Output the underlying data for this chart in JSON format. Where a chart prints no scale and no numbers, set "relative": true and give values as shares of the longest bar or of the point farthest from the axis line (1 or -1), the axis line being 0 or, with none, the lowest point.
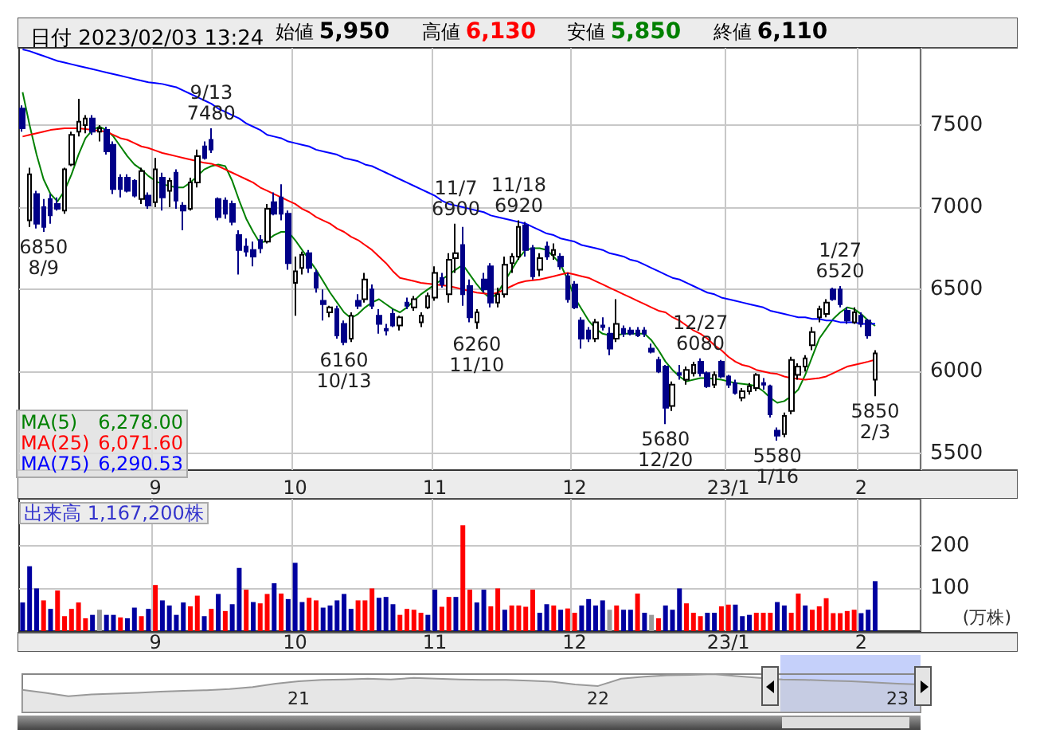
{
  "chart_data": [
    {
      "type": "candlestick",
      "title": "日付 2023/02/03 13:24",
      "annotations": [
        "始値 5,950",
        "高値 6,130",
        "安値 5,850",
        "終値 6,110",
        "6,278.00",
        "6,071.60",
        "6,290.53",
        {
          "text": "6850\n8/9",
          "y": 6850
        },
        {
          "text": "9/13\n7480",
          "y": 7480
        },
        {
          "text": "6160\n10/13",
          "y": 6160
        },
        {
          "text": "11/7\n6900",
          "y": 6900
        },
        {
          "text": "6260\n11/10",
          "y": 6260
        },
        {
          "text": "11/18\n6920",
          "y": 6920
        },
        {
          "text": "5680\n12/20",
          "y": 5680
        },
        {
          "text": "12/27\n6080",
          "y": 6080
        },
        {
          "text": "5580\n1/16",
          "y": 5580
        },
        {
          "text": "1/27\n6520",
          "y": 6520
        },
        {
          "text": "5850\n2/3",
          "y": 5850
        }
      ],
      "categories": [
        null,
        null,
        null,
        null,
        null,
        null,
        null,
        null,
        null,
        null,
        null,
        null,
        null,
        null,
        null,
        null,
        null,
        null,
        null,
        "9",
        null,
        null,
        null,
        null,
        null,
        null,
        null,
        null,
        null,
        null,
        null,
        null,
        null,
        null,
        null,
        null,
        null,
        null,
        null,
        "10",
        null,
        null,
        null,
        null,
        null,
        null,
        null,
        null,
        null,
        null,
        null,
        null,
        null,
        null,
        null,
        null,
        null,
        null,
        null,
        "11",
        null,
        null,
        null,
        null,
        null,
        null,
        null,
        null,
        null,
        null,
        null,
        null,
        null,
        null,
        null,
        null,
        null,
        null,
        null,
        "12",
        null,
        null,
        null,
        null,
        null,
        null,
        null,
        null,
        null,
        null,
        null,
        null,
        null,
        null,
        null,
        null,
        null,
        null,
        null,
        null,
        null,
        "23/1",
        null,
        null,
        null,
        null,
        null,
        null,
        null,
        null,
        null,
        null,
        null,
        null,
        null,
        null,
        null,
        null,
        null,
        null,
        "2",
        null,
        null
      ],
      "ohlc": [
        [
          7600,
          7620,
          7460,
          7480
        ],
        [
          6920,
          7240,
          6880,
          7200
        ],
        [
          7080,
          7100,
          6870,
          6900
        ],
        [
          7000,
          7050,
          6850,
          6880
        ],
        [
          7050,
          7080,
          6900,
          6950
        ],
        [
          7020,
          7060,
          6980,
          6990
        ],
        [
          6980,
          7240,
          6960,
          7230
        ],
        [
          7260,
          7460,
          7250,
          7440
        ],
        [
          7460,
          7660,
          7430,
          7520
        ],
        [
          7500,
          7560,
          7450,
          7540
        ],
        [
          7540,
          7560,
          7440,
          7460
        ],
        [
          7460,
          7500,
          7400,
          7480
        ],
        [
          7470,
          7490,
          7320,
          7340
        ],
        [
          7380,
          7400,
          7080,
          7110
        ],
        [
          7180,
          7200,
          7060,
          7110
        ],
        [
          7180,
          7200,
          7090,
          7100
        ],
        [
          7160,
          7170,
          7060,
          7070
        ],
        [
          7050,
          7240,
          7020,
          7220
        ],
        [
          7070,
          7090,
          6990,
          7010
        ],
        [
          7030,
          7300,
          7000,
          7230
        ],
        [
          7180,
          7210,
          6980,
          7060
        ],
        [
          7100,
          7180,
          7000,
          7160
        ],
        [
          7210,
          7230,
          6990,
          7040
        ],
        [
          7010,
          7030,
          6860,
          6980
        ],
        [
          6990,
          7180,
          6980,
          7150
        ],
        [
          7150,
          7350,
          7120,
          7310
        ],
        [
          7370,
          7400,
          7290,
          7300
        ],
        [
          7410,
          7480,
          7330,
          7350
        ],
        [
          7050,
          7060,
          6920,
          6940
        ],
        [
          7040,
          7060,
          6930,
          6960
        ],
        [
          7020,
          7040,
          6890,
          6910
        ],
        [
          6830,
          6860,
          6590,
          6740
        ],
        [
          6760,
          6810,
          6700,
          6730
        ],
        [
          6740,
          6790,
          6640,
          6700
        ],
        [
          6800,
          6830,
          6720,
          6750
        ],
        [
          6790,
          7020,
          6780,
          6990
        ],
        [
          7030,
          7090,
          6950,
          6960
        ],
        [
          7060,
          7140,
          6920,
          6960
        ],
        [
          6960,
          6980,
          6620,
          6660
        ],
        [
          6540,
          6700,
          6340,
          6610
        ],
        [
          6630,
          6730,
          6590,
          6710
        ],
        [
          6720,
          6740,
          6600,
          6630
        ],
        [
          6600,
          6620,
          6480,
          6510
        ],
        [
          6430,
          6500,
          6310,
          6410
        ],
        [
          6360,
          6400,
          6330,
          6390
        ],
        [
          6380,
          6400,
          6200,
          6220
        ],
        [
          6290,
          6310,
          6160,
          6180
        ],
        [
          6200,
          6360,
          6180,
          6340
        ],
        [
          6430,
          6470,
          6380,
          6400
        ],
        [
          6440,
          6600,
          6420,
          6560
        ],
        [
          6500,
          6530,
          6380,
          6400
        ],
        [
          6340,
          6380,
          6230,
          6290
        ],
        [
          6260,
          6290,
          6220,
          6250
        ],
        [
          6350,
          6380,
          6270,
          6280
        ],
        [
          6280,
          6340,
          6250,
          6330
        ],
        [
          6420,
          6450,
          6380,
          6400
        ],
        [
          6390,
          6460,
          6370,
          6440
        ],
        [
          6300,
          6360,
          6270,
          6340
        ],
        [
          6390,
          6480,
          6380,
          6460
        ],
        [
          6450,
          6640,
          6430,
          6600
        ],
        [
          6570,
          6600,
          6510,
          6530
        ],
        [
          6470,
          6720,
          6420,
          6680
        ],
        [
          6690,
          6900,
          6600,
          6720
        ],
        [
          6770,
          6880,
          6400,
          6470
        ],
        [
          6520,
          6560,
          6300,
          6330
        ],
        [
          6300,
          6380,
          6260,
          6360
        ],
        [
          6560,
          6600,
          6480,
          6500
        ],
        [
          6640,
          6660,
          6390,
          6420
        ],
        [
          6420,
          6510,
          6390,
          6470
        ],
        [
          6470,
          6700,
          6450,
          6650
        ],
        [
          6660,
          6720,
          6600,
          6700
        ],
        [
          6700,
          6920,
          6680,
          6880
        ],
        [
          6890,
          6910,
          6700,
          6740
        ],
        [
          6750,
          6770,
          6560,
          6580
        ],
        [
          6620,
          6720,
          6580,
          6690
        ],
        [
          6760,
          6790,
          6680,
          6700
        ],
        [
          6710,
          6780,
          6680,
          6740
        ],
        [
          6700,
          6720,
          6620,
          6640
        ],
        [
          6580,
          6600,
          6420,
          6440
        ],
        [
          6530,
          6550,
          6380,
          6390
        ],
        [
          6310,
          6330,
          6140,
          6200
        ],
        [
          6250,
          6270,
          6180,
          6200
        ],
        [
          6200,
          6320,
          6180,
          6300
        ],
        [
          6280,
          6330,
          6250,
          6270
        ],
        [
          6230,
          6270,
          6100,
          6140
        ],
        [
          6200,
          6440,
          6180,
          6290
        ],
        [
          6260,
          6280,
          6210,
          6230
        ],
        [
          6250,
          6270,
          6220,
          6230
        ],
        [
          6250,
          6270,
          6210,
          6220
        ],
        [
          6250,
          6270,
          6210,
          6230
        ],
        [
          6140,
          6170,
          6110,
          6120
        ],
        [
          6070,
          6090,
          5990,
          6000
        ],
        [
          6030,
          6040,
          5680,
          5780
        ],
        [
          5790,
          5940,
          5760,
          5920
        ],
        [
          5990,
          6040,
          5950,
          5980
        ],
        [
          5950,
          6030,
          5920,
          6010
        ],
        [
          5990,
          6060,
          5970,
          6040
        ],
        [
          6060,
          6080,
          5970,
          5990
        ],
        [
          5990,
          6000,
          5900,
          5910
        ],
        [
          5920,
          6000,
          5900,
          5980
        ],
        [
          6060,
          6070,
          5960,
          5970
        ],
        [
          5970,
          5980,
          5900,
          5920
        ],
        [
          5930,
          5950,
          5860,
          5870
        ],
        [
          5840,
          5900,
          5820,
          5880
        ],
        [
          5880,
          5930,
          5860,
          5910
        ],
        [
          5900,
          5990,
          5880,
          5980
        ],
        [
          5930,
          5960,
          5890,
          5920
        ],
        [
          5910,
          5920,
          5720,
          5740
        ],
        [
          5640,
          5660,
          5580,
          5610
        ],
        [
          5620,
          5750,
          5600,
          5730
        ],
        [
          5760,
          6090,
          5740,
          6070
        ],
        [
          5980,
          6050,
          5950,
          6030
        ],
        [
          6030,
          6100,
          6000,
          6080
        ],
        [
          6160,
          6270,
          6130,
          6240
        ],
        [
          6330,
          6400,
          6300,
          6380
        ],
        [
          6350,
          6440,
          6330,
          6420
        ],
        [
          6500,
          6510,
          6430,
          6440
        ],
        [
          6500,
          6520,
          6390,
          6410
        ],
        [
          6370,
          6390,
          6290,
          6310
        ],
        [
          6300,
          6390,
          6290,
          6360
        ],
        [
          6340,
          6360,
          6270,
          6290
        ],
        [
          6310,
          6320,
          6200,
          6220
        ],
        [
          5950,
          6130,
          5850,
          6110
        ]
      ],
      "series": [
        {
          "name": "MA(5)",
          "type": "line",
          "color": "#008000",
          "values": [
            7700,
            7500,
            7320,
            7170,
            7080,
            7035,
            7100,
            7200,
            7320,
            7420,
            7470,
            7490,
            7470,
            7430,
            7370,
            7310,
            7260,
            7230,
            7190,
            7160,
            7140,
            7130,
            7120,
            7120,
            7150,
            7190,
            7230,
            7250,
            7260,
            7250,
            7160,
            7040,
            6930,
            6850,
            6780,
            6800,
            6830,
            6850,
            6850,
            6800,
            6740,
            6680,
            6620,
            6550,
            6480,
            6420,
            6360,
            6325,
            6350,
            6390,
            6420,
            6440,
            6410,
            6380,
            6360,
            6390,
            6430,
            6470,
            6500,
            6530,
            6560,
            6590,
            6620,
            6650,
            6590,
            6530,
            6480,
            6440,
            6480,
            6550,
            6620,
            6690,
            6740,
            6750,
            6750,
            6740,
            6700,
            6650,
            6560,
            6450,
            6380,
            6310,
            6260,
            6230,
            6220,
            6220,
            6230,
            6230,
            6230,
            6230,
            6190,
            6130,
            6060,
            6010,
            5970,
            5940,
            5950,
            5960,
            5960,
            5955,
            5950,
            5940,
            5930,
            5925,
            5920,
            5910,
            5880,
            5840,
            5810,
            5820,
            5850,
            5890,
            5980,
            6090,
            6200,
            6260,
            6320,
            6360,
            6390,
            6380,
            6350,
            6310,
            6278
          ]
        },
        {
          "name": "MA(25)",
          "type": "line",
          "color": "#ff0000",
          "values": [
            7430,
            7440,
            7450,
            7460,
            7470,
            7475,
            7480,
            7480,
            7480,
            7475,
            7470,
            7465,
            7460,
            7440,
            7420,
            7410,
            7390,
            7370,
            7360,
            7345,
            7330,
            7320,
            7310,
            7300,
            7290,
            7280,
            7270,
            7265,
            7250,
            7230,
            7210,
            7190,
            7170,
            7150,
            7120,
            7100,
            7080,
            7060,
            7040,
            7020,
            6990,
            6970,
            6940,
            6920,
            6900,
            6870,
            6850,
            6820,
            6800,
            6770,
            6740,
            6700,
            6660,
            6610,
            6570,
            6560,
            6550,
            6540,
            6535,
            6530,
            6525,
            6520,
            6510,
            6500,
            6490,
            6480,
            6475,
            6470,
            6480,
            6500,
            6520,
            6540,
            6550,
            6555,
            6560,
            6570,
            6580,
            6590,
            6600,
            6590,
            6580,
            6570,
            6550,
            6530,
            6510,
            6490,
            6470,
            6450,
            6430,
            6410,
            6390,
            6370,
            6360,
            6330,
            6310,
            6280,
            6250,
            6230,
            6200,
            6160,
            6130,
            6090,
            6060,
            6040,
            6030,
            6010,
            6000,
            5990,
            5985,
            5970,
            5960,
            5955,
            5950,
            5955,
            5960,
            5970,
            5990,
            6010,
            6030,
            6040,
            6050,
            6060,
            6071.6
          ]
        },
        {
          "name": "MA(75)",
          "type": "line",
          "color": "#0000ff",
          "values": [
            7960,
            7950,
            7935,
            7920,
            7905,
            7890,
            7880,
            7870,
            7860,
            7850,
            7840,
            7830,
            7820,
            7810,
            7800,
            7790,
            7780,
            7770,
            7760,
            7755,
            7750,
            7740,
            7730,
            7710,
            7690,
            7670,
            7650,
            7630,
            7600,
            7580,
            7560,
            7540,
            7510,
            7490,
            7470,
            7440,
            7430,
            7420,
            7400,
            7390,
            7380,
            7370,
            7350,
            7340,
            7330,
            7320,
            7300,
            7290,
            7280,
            7260,
            7250,
            7230,
            7210,
            7190,
            7170,
            7150,
            7130,
            7110,
            7090,
            7070,
            7040,
            7020,
            7010,
            7000,
            6990,
            6980,
            6970,
            6950,
            6940,
            6930,
            6920,
            6910,
            6900,
            6880,
            6860,
            6840,
            6830,
            6810,
            6800,
            6790,
            6770,
            6760,
            6750,
            6740,
            6720,
            6710,
            6700,
            6680,
            6670,
            6650,
            6630,
            6610,
            6590,
            6570,
            6560,
            6540,
            6520,
            6500,
            6480,
            6470,
            6450,
            6440,
            6430,
            6420,
            6410,
            6400,
            6390,
            6370,
            6360,
            6350,
            6340,
            6330,
            6330,
            6320,
            6320,
            6310,
            6310,
            6300,
            6300,
            6300,
            6290,
            6290,
            6290.53
          ]
        }
      ],
      "ylim": [
        5400,
        7970
      ],
      "yticks": [
        5500,
        6000,
        6500,
        7000,
        7500
      ],
      "grid": true,
      "legend": "bottom left",
      "marker": "none"
    },
    {
      "type": "bar",
      "title": "出来高 1,167,200株",
      "ylabel": "(万株)",
      "categories": [
        null,
        null,
        null,
        null,
        null,
        null,
        null,
        null,
        null,
        null,
        null,
        null,
        null,
        null,
        null,
        null,
        null,
        null,
        null,
        "9",
        null,
        null,
        null,
        null,
        null,
        null,
        null,
        null,
        null,
        null,
        null,
        null,
        null,
        null,
        null,
        null,
        null,
        null,
        null,
        "10",
        null,
        null,
        null,
        null,
        null,
        null,
        null,
        null,
        null,
        null,
        null,
        null,
        null,
        null,
        null,
        null,
        null,
        null,
        null,
        "11",
        null,
        null,
        null,
        null,
        null,
        null,
        null,
        null,
        null,
        null,
        null,
        null,
        null,
        null,
        null,
        null,
        null,
        null,
        null,
        "12",
        null,
        null,
        null,
        null,
        null,
        null,
        null,
        null,
        null,
        null,
        null,
        null,
        null,
        null,
        null,
        null,
        null,
        null,
        null,
        null,
        null,
        "23/1",
        null,
        null,
        null,
        null,
        null,
        null,
        null,
        null,
        null,
        null,
        null,
        null,
        null,
        null,
        null,
        null,
        null,
        null,
        "2",
        null,
        null
      ],
      "values": [
        67,
        152,
        100,
        72,
        52,
        95,
        35,
        52,
        67,
        30,
        38,
        50,
        38,
        38,
        32,
        30,
        55,
        35,
        52,
        108,
        72,
        60,
        38,
        67,
        58,
        83,
        35,
        52,
        87,
        47,
        63,
        148,
        97,
        68,
        65,
        87,
        112,
        88,
        75,
        160,
        68,
        78,
        72,
        55,
        60,
        72,
        87,
        52,
        72,
        72,
        100,
        78,
        80,
        63,
        38,
        52,
        50,
        43,
        38,
        97,
        57,
        80,
        80,
        248,
        97,
        67,
        97,
        58,
        100,
        50,
        60,
        60,
        57,
        97,
        43,
        63,
        60,
        50,
        53,
        43,
        60,
        75,
        60,
        72,
        50,
        60,
        50,
        50,
        88,
        43,
        38,
        30,
        60,
        50,
        100,
        65,
        43,
        35,
        43,
        43,
        58,
        62,
        62,
        35,
        38,
        43,
        43,
        43,
        68,
        60,
        43,
        88,
        60,
        50,
        58,
        77,
        42,
        42,
        47,
        50,
        42,
        50,
        117
      ],
      "colors": [
        "#0000a0",
        "#0000a0",
        "#0000a0",
        "#ff0000",
        "#0000a0",
        "#ff0000",
        "#ff0000",
        "#ff0000",
        "#ff0000",
        "#ff0000",
        "#0000a0",
        "#999999",
        "#0000a0",
        "#0000a0",
        "#ff0000",
        "#0000a0",
        "#0000a0",
        "#ff0000",
        "#0000a0",
        "#ff0000",
        "#0000a0",
        "#0000a0",
        "#0000a0",
        "#0000a0",
        "#ff0000",
        "#ff0000",
        "#0000a0",
        "#ff0000",
        "#0000a0",
        "#ff0000",
        "#0000a0",
        "#0000a0",
        "#ff0000",
        "#0000a0",
        "#ff0000",
        "#ff0000",
        "#0000a0",
        "#ff0000",
        "#0000a0",
        "#0000a0",
        "#0000a0",
        "#ff0000",
        "#ff0000",
        "#0000a0",
        "#0000a0",
        "#0000a0",
        "#0000a0",
        "#0000a0",
        "#ff0000",
        "#ff0000",
        "#ff0000",
        "#0000a0",
        "#0000a0",
        "#0000a0",
        "#ff0000",
        "#ff0000",
        "#ff0000",
        "#ff0000",
        "#0000a0",
        "#0000a0",
        "#ff0000",
        "#ff0000",
        "#0000a0",
        "#ff0000",
        "#ff0000",
        "#0000a0",
        "#0000a0",
        "#ff0000",
        "#ff0000",
        "#0000a0",
        "#ff0000",
        "#ff0000",
        "#ff0000",
        "#ff0000",
        "#0000a0",
        "#0000a0",
        "#ff0000",
        "#0000a0",
        "#ff0000",
        "#ff0000",
        "#0000a0",
        "#0000a0",
        "#0000a0",
        "#0000a0",
        "#999999",
        "#ff0000",
        "#0000a0",
        "#0000a0",
        "#ff0000",
        "#0000a0",
        "#999999",
        "#ff0000",
        "#0000a0",
        "#0000a0",
        "#0000a0",
        "#ff0000",
        "#ff0000",
        "#ff0000",
        "#0000a0",
        "#0000a0",
        "#ff0000",
        "#ff0000",
        "#0000a0",
        "#0000a0",
        "#0000a0",
        "#ff0000",
        "#ff0000",
        "#ff0000",
        "#0000a0",
        "#0000a0",
        "#ff0000",
        "#ff0000",
        "#0000a0",
        "#ff0000",
        "#ff0000",
        "#ff0000",
        "#ff0000",
        "#ff0000",
        "#ff0000",
        "#ff0000",
        "#0000a0",
        "#0000a0",
        "#0000a0"
      ],
      "ylim": [
        0,
        310
      ],
      "yticks": [
        100,
        200
      ],
      "grid": true
    },
    {
      "type": "area",
      "relative": true,
      "color": "#999999",
      "categories": [
        null,
        null,
        null,
        null,
        null,
        null,
        null,
        null,
        null,
        null,
        null,
        null,
        "21",
        null,
        null,
        null,
        null,
        null,
        null,
        null,
        null,
        null,
        null,
        null,
        null,
        "22",
        null,
        null,
        null,
        null,
        null,
        null,
        null,
        null,
        null,
        null,
        null,
        null,
        "23",
        null
      ],
      "values": [
        0.59,
        0.51,
        0.42,
        0.47,
        0.49,
        0.51,
        0.54,
        0.56,
        0.58,
        0.61,
        0.66,
        0.75,
        0.81,
        0.85,
        0.86,
        0.88,
        0.86,
        0.9,
        0.88,
        0.86,
        0.85,
        0.85,
        0.83,
        0.8,
        0.73,
        0.69,
        0.88,
        0.93,
        0.97,
        0.98,
        1,
        0.95,
        0.9,
        0.86,
        0.85,
        0.83,
        0.81,
        0.78,
        0.75,
        0.73
      ]
    }
  ]
}
